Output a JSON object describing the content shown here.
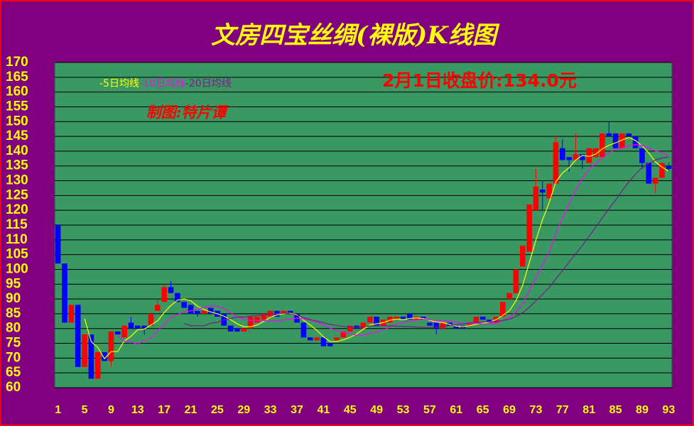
{
  "chart_data": {
    "type": "candlestick",
    "title": "文房四宝丝绸(裸版)K线图",
    "annotations": [
      "2月1日收盘价:134.0元",
      "制图:特片谭"
    ],
    "x": [
      1,
      2,
      3,
      4,
      5,
      6,
      7,
      8,
      9,
      10,
      11,
      12,
      13,
      14,
      15,
      16,
      17,
      18,
      19,
      20,
      21,
      22,
      23,
      24,
      25,
      26,
      27,
      28,
      29,
      30,
      31,
      32,
      33,
      34,
      35,
      36,
      37,
      38,
      39,
      40,
      41,
      42,
      43,
      44,
      45,
      46,
      47,
      48,
      49,
      50,
      51,
      52,
      53,
      54,
      55,
      56,
      57,
      58,
      59,
      60,
      61,
      62,
      63,
      64,
      65,
      66,
      67,
      68,
      69,
      70,
      71,
      72,
      73,
      74,
      75,
      76,
      77,
      78,
      79,
      80,
      81,
      82,
      83,
      84,
      85,
      86,
      87,
      88,
      89,
      90,
      91,
      92,
      93
    ],
    "xlim": [
      0.5,
      93.5
    ],
    "xticks": [
      1,
      5,
      9,
      13,
      17,
      21,
      25,
      29,
      33,
      37,
      41,
      45,
      49,
      53,
      57,
      61,
      65,
      69,
      73,
      77,
      81,
      85,
      89,
      93
    ],
    "ylim": [
      60,
      170
    ],
    "yticks": [
      60,
      65,
      70,
      75,
      80,
      85,
      90,
      95,
      100,
      105,
      110,
      115,
      120,
      125,
      130,
      135,
      140,
      145,
      150,
      155,
      160,
      165,
      170
    ],
    "grid": true,
    "up_color": "#ff0000",
    "down_color": "#0000ff",
    "open": [
      115,
      102,
      82,
      88,
      67,
      78,
      63,
      72,
      69,
      79,
      77,
      82,
      81,
      81,
      81,
      86,
      89,
      94,
      92,
      89,
      88,
      86,
      85,
      87,
      86,
      85,
      81,
      80,
      79,
      80,
      82,
      83,
      84,
      86,
      85,
      86,
      85,
      82,
      77,
      76,
      77,
      75,
      76,
      77,
      79,
      81,
      80,
      82,
      84,
      81,
      82,
      83,
      84,
      85,
      83,
      84,
      82,
      82,
      80,
      82,
      81,
      81,
      81,
      82,
      84,
      83,
      82,
      84,
      90,
      92,
      101,
      106,
      120,
      127,
      124,
      129,
      141,
      138,
      137,
      139,
      136,
      138,
      138,
      146,
      146,
      141,
      146,
      145,
      141,
      136,
      129,
      131,
      135
    ],
    "high": [
      115,
      102,
      88,
      88,
      78,
      78,
      72,
      72,
      79,
      79,
      81,
      84,
      81,
      81,
      85,
      90,
      95,
      96,
      92,
      89,
      88,
      86,
      86,
      87,
      86,
      85,
      81,
      80,
      80,
      84,
      84,
      85,
      86,
      86,
      86,
      86,
      85,
      82,
      77,
      77,
      77,
      75,
      77,
      79,
      81,
      81,
      82,
      84,
      84,
      83,
      84,
      84,
      84,
      85,
      84,
      84,
      82,
      82,
      82,
      82,
      81,
      81,
      82,
      84,
      84,
      83,
      84,
      89,
      92,
      100,
      108,
      122,
      134,
      130,
      129,
      145,
      144,
      138,
      146,
      139,
      141,
      141,
      146,
      150,
      146,
      146,
      146,
      145,
      141,
      136,
      131,
      136,
      136
    ],
    "low": [
      102,
      82,
      82,
      67,
      67,
      63,
      63,
      69,
      67,
      78,
      77,
      80,
      80,
      78,
      81,
      86,
      89,
      92,
      89,
      87,
      85,
      84,
      85,
      85,
      84,
      81,
      79,
      79,
      79,
      80,
      82,
      83,
      84,
      84,
      85,
      85,
      82,
      77,
      76,
      76,
      74,
      74,
      76,
      77,
      79,
      80,
      80,
      82,
      81,
      81,
      82,
      83,
      83,
      83,
      83,
      83,
      81,
      78,
      80,
      81,
      80,
      80,
      81,
      82,
      83,
      82,
      82,
      84,
      90,
      92,
      101,
      106,
      120,
      120,
      124,
      129,
      137,
      133,
      137,
      134,
      136,
      138,
      138,
      145,
      141,
      141,
      145,
      141,
      134,
      129,
      126,
      131,
      133
    ],
    "close": [
      102,
      82,
      88,
      67,
      78,
      63,
      72,
      69,
      79,
      78,
      81,
      80,
      80,
      80,
      85,
      88,
      94,
      92,
      89,
      87,
      85,
      85,
      86,
      85,
      84,
      81,
      79,
      79,
      80,
      84,
      84,
      85,
      86,
      84,
      86,
      85,
      82,
      77,
      76,
      77,
      74,
      74,
      77,
      79,
      81,
      80,
      82,
      84,
      81,
      83,
      84,
      84,
      83,
      83,
      84,
      83,
      81,
      80,
      82,
      81,
      80,
      80,
      82,
      84,
      83,
      82,
      84,
      89,
      92,
      100,
      108,
      122,
      128,
      126,
      129,
      143,
      137,
      137,
      139,
      137,
      141,
      141,
      146,
      145,
      141,
      146,
      145,
      141,
      136,
      129,
      131,
      136,
      134
    ],
    "series": [
      {
        "name": "-5日均线",
        "color": "#ffff00",
        "values": [
          null,
          null,
          null,
          null,
          83.4,
          75.6,
          73.6,
          69.8,
          72.2,
          72.2,
          75.8,
          77.4,
          79.6,
          79.8,
          81.2,
          82.6,
          85.4,
          87.8,
          89.6,
          90,
          89.4,
          87.6,
          86.4,
          85.6,
          85,
          84.2,
          83,
          81.6,
          80.6,
          80.6,
          81.2,
          82.4,
          83.8,
          84.6,
          85,
          85.2,
          84.6,
          82.8,
          81.2,
          79.4,
          77.2,
          75.6,
          75.6,
          76.2,
          77,
          78.2,
          79.8,
          81.2,
          81.6,
          82,
          82.8,
          83.2,
          83,
          83.4,
          83.6,
          83.4,
          82.8,
          82.2,
          82,
          81.4,
          80.8,
          80.6,
          81,
          81.4,
          81.8,
          82.2,
          83,
          84.4,
          86,
          89.4,
          94.6,
          102.2,
          110,
          116.8,
          122.6,
          129.6,
          132.6,
          134.4,
          137,
          138.6,
          138.2,
          139,
          140.8,
          142,
          142.8,
          143.8,
          144.6,
          143.6,
          141.8,
          139.4,
          136.4,
          134.6,
          133.2
        ]
      },
      {
        "name": "-10日均线",
        "color": "#ff00ff",
        "values": [
          null,
          null,
          null,
          null,
          null,
          null,
          null,
          null,
          null,
          77.8,
          75.7,
          75.5,
          74.7,
          76,
          76.7,
          79.2,
          81.4,
          83.7,
          84.7,
          85.6,
          86,
          86.5,
          87.1,
          87.6,
          87.5,
          86.8,
          85.3,
          84,
          83.1,
          82.8,
          82.7,
          82.7,
          82.7,
          82.6,
          82.8,
          83.2,
          83.5,
          83.3,
          82.9,
          82.2,
          81.2,
          80.1,
          79.2,
          78.7,
          78.2,
          77.7,
          77.7,
          78.4,
          78.9,
          79.5,
          80.5,
          81.5,
          82.1,
          82.5,
          82.8,
          83.1,
          83,
          82.6,
          82.7,
          82.5,
          82.1,
          81.7,
          81.6,
          81.7,
          81.6,
          81.5,
          81.8,
          82.7,
          83.7,
          85.6,
          88.4,
          92.6,
          97.2,
          101.4,
          106,
          112.1,
          117.4,
          122.2,
          126.9,
          130.6,
          133.9,
          135.8,
          137.6,
          139.5,
          140.7,
          141,
          141.8,
          142.2,
          141.9,
          141.1,
          140.1,
          139.6,
          138.4
        ]
      },
      {
        "name": "-20日均线",
        "color": "#7a1a8a",
        "values": [
          null,
          null,
          null,
          null,
          null,
          null,
          null,
          null,
          null,
          null,
          null,
          null,
          null,
          null,
          null,
          null,
          null,
          null,
          null,
          81.7,
          80.9,
          81,
          80.9,
          81.8,
          82.1,
          83,
          83.4,
          83.9,
          83.9,
          84.2,
          84.4,
          84.6,
          84.9,
          85.1,
          85.2,
          85,
          84.4,
          83.7,
          83,
          82.5,
          82,
          81.4,
          81,
          80.7,
          80.5,
          80.5,
          80.6,
          80.9,
          80.9,
          80.9,
          80.9,
          80.8,
          80.7,
          80.6,
          80.5,
          80.4,
          80.4,
          80.5,
          80.8,
          81,
          81.3,
          81.6,
          81.9,
          82.1,
          82.2,
          82.3,
          82.4,
          82.7,
          83.2,
          84.1,
          85.3,
          87.2,
          89.4,
          91.6,
          93.8,
          96.8,
          99.6,
          102.5,
          105.3,
          108.1,
          111.2,
          114.2,
          117.4,
          120.5,
          123.4,
          126.6,
          129.6,
          132.2,
          134.4,
          135.9,
          137,
          137.7,
          138
        ]
      }
    ]
  }
}
